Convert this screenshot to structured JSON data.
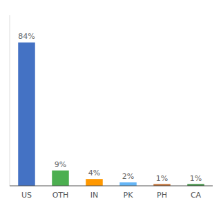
{
  "chart_data": {
    "type": "bar",
    "categories": [
      "US",
      "OTH",
      "IN",
      "PK",
      "PH",
      "CA"
    ],
    "values": [
      84,
      9,
      4,
      2,
      1,
      1
    ],
    "value_labels": [
      "84%",
      "9%",
      "4%",
      "2%",
      "1%",
      "1%"
    ],
    "data_labels": true,
    "colors": [
      "#4472c4",
      "#4caf50",
      "#ff9800",
      "#64b5f6",
      "#c0692a",
      "#388e3c"
    ],
    "ylim": [
      0,
      100
    ],
    "tick_labels": "x"
  }
}
